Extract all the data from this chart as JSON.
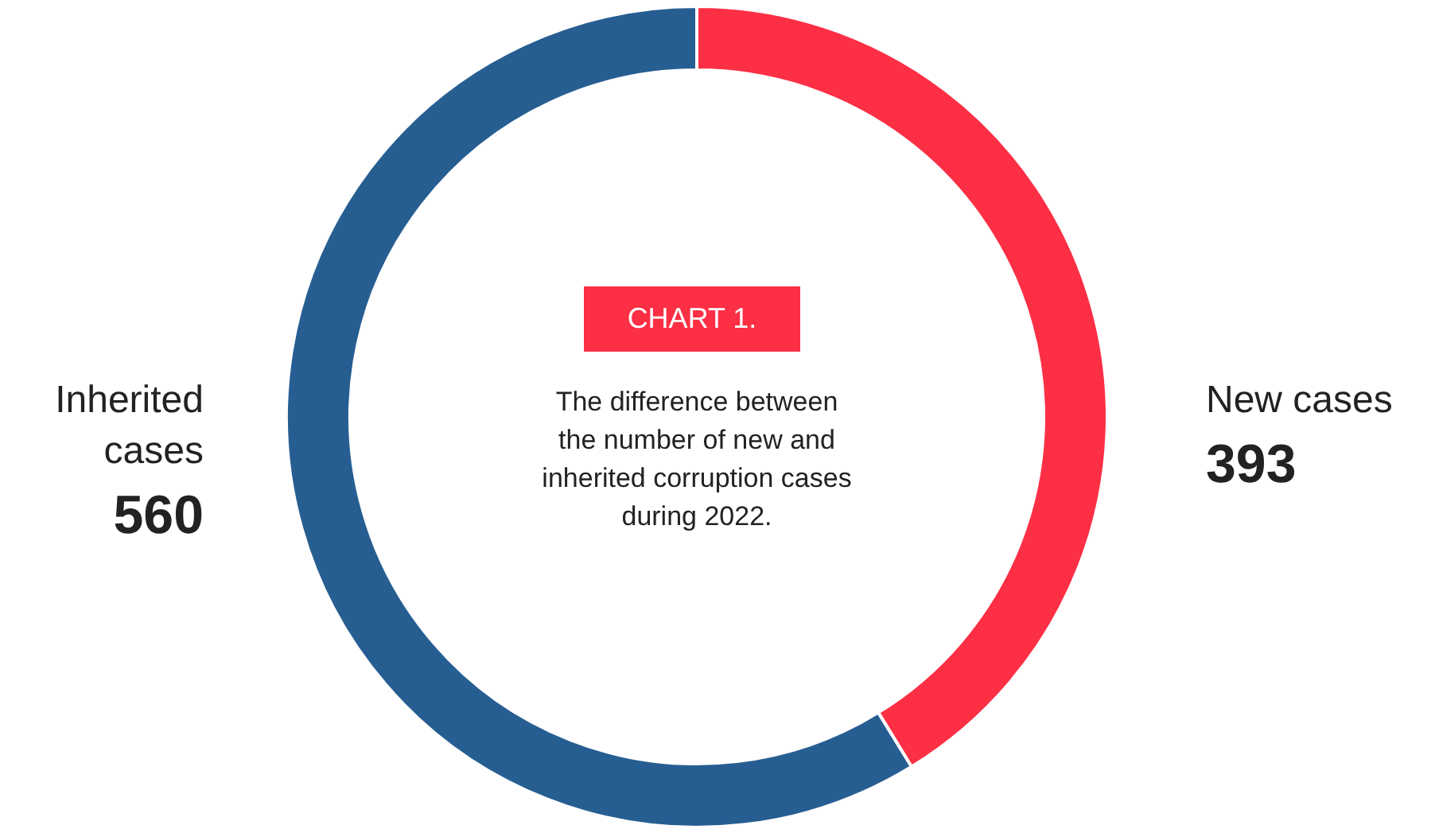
{
  "chart_data": {
    "type": "donut",
    "title": "CHART 1.",
    "subtitle": "The difference between\nthe number of new and\ninherited corruption cases\nduring 2022.",
    "categories": [
      "New cases",
      "Inherited cases"
    ],
    "values": [
      393,
      560
    ],
    "colors": [
      "#fc2f45",
      "#275e92"
    ],
    "data_labels": true
  }
}
